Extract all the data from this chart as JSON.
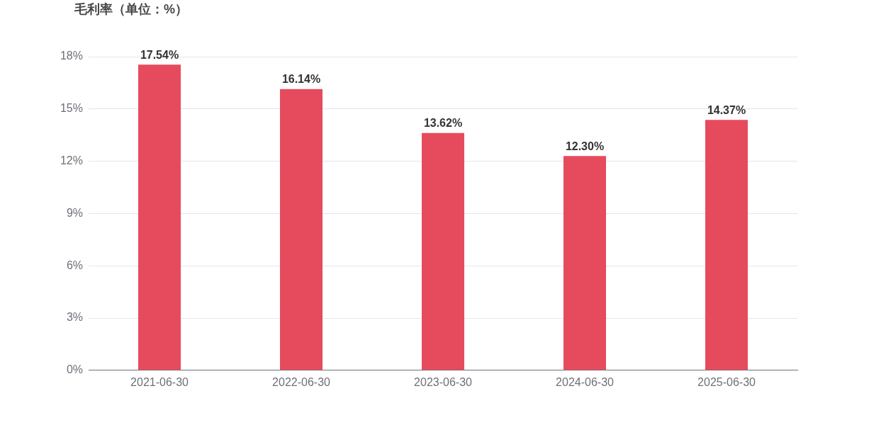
{
  "chart_data": {
    "type": "bar",
    "title": "毛利率（单位：%）",
    "categories": [
      "2021-06-30",
      "2022-06-30",
      "2023-06-30",
      "2024-06-30",
      "2025-06-30"
    ],
    "values": [
      17.54,
      16.14,
      13.62,
      12.3,
      14.37
    ],
    "value_labels": [
      "17.54%",
      "16.14%",
      "13.62%",
      "12.30%",
      "14.37%"
    ],
    "color": "#e64b5d",
    "ylim": [
      0,
      18
    ],
    "yticks": [
      {
        "value": 0,
        "label": "0%"
      },
      {
        "value": 3,
        "label": "3%"
      },
      {
        "value": 6,
        "label": "6%"
      },
      {
        "value": 9,
        "label": "9%"
      },
      {
        "value": 12,
        "label": "12%"
      },
      {
        "value": 15,
        "label": "15%"
      },
      {
        "value": 18,
        "label": "18%"
      }
    ],
    "grid": "y",
    "legend": false
  }
}
